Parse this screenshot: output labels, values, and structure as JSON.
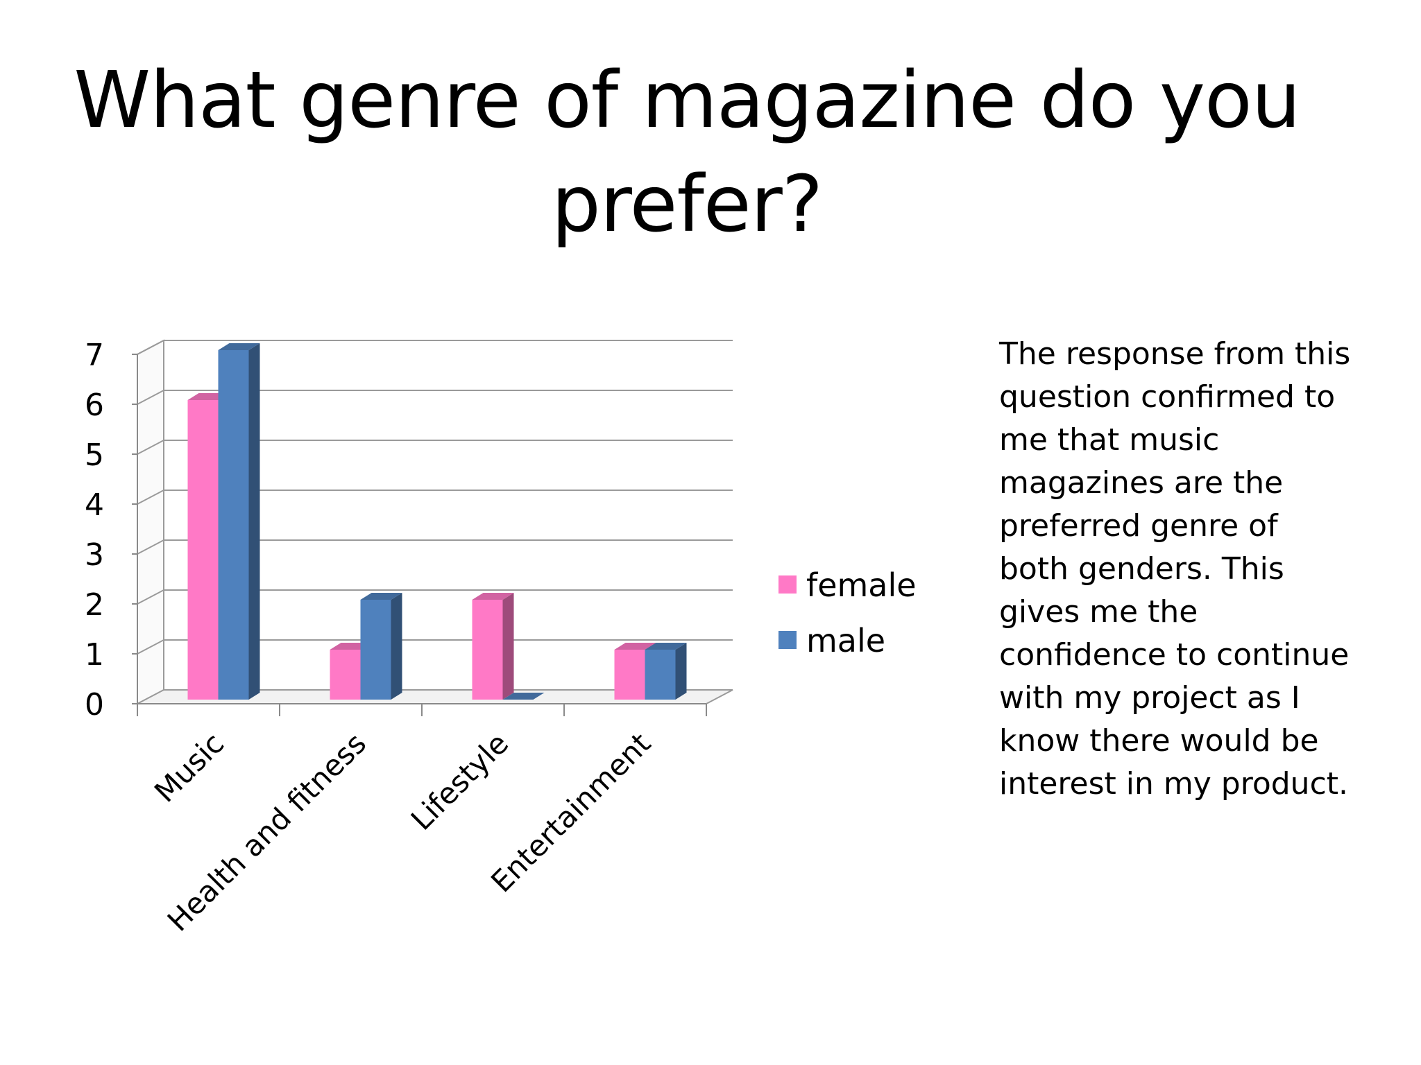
{
  "slide": {
    "title_lines": [
      "What genre of magazine do you",
      "prefer?"
    ],
    "body_lines": [
      "The response from this",
      "question confirmed to",
      "me that music",
      "magazines are the",
      "preferred genre of",
      "both genders. This",
      "gives me the",
      "confidence to continue",
      "with my project as I",
      "know there would be",
      "interest in my product."
    ]
  },
  "chart_data": {
    "type": "bar",
    "style": "3d-clustered-column",
    "title": "",
    "xlabel": "",
    "ylabel": "",
    "categories": [
      "Music",
      "Health and fitness",
      "Lifestyle",
      "Entertainment"
    ],
    "series": [
      {
        "name": "female",
        "values": [
          6,
          1,
          2,
          1
        ],
        "color": "#FF79C6"
      },
      {
        "name": "male",
        "values": [
          7,
          2,
          0,
          1
        ],
        "color": "#4F81BD"
      }
    ],
    "ylim": [
      0,
      7
    ],
    "yticks": [
      0,
      1,
      2,
      3,
      4,
      5,
      6,
      7
    ],
    "grid": true,
    "legend": "right"
  }
}
